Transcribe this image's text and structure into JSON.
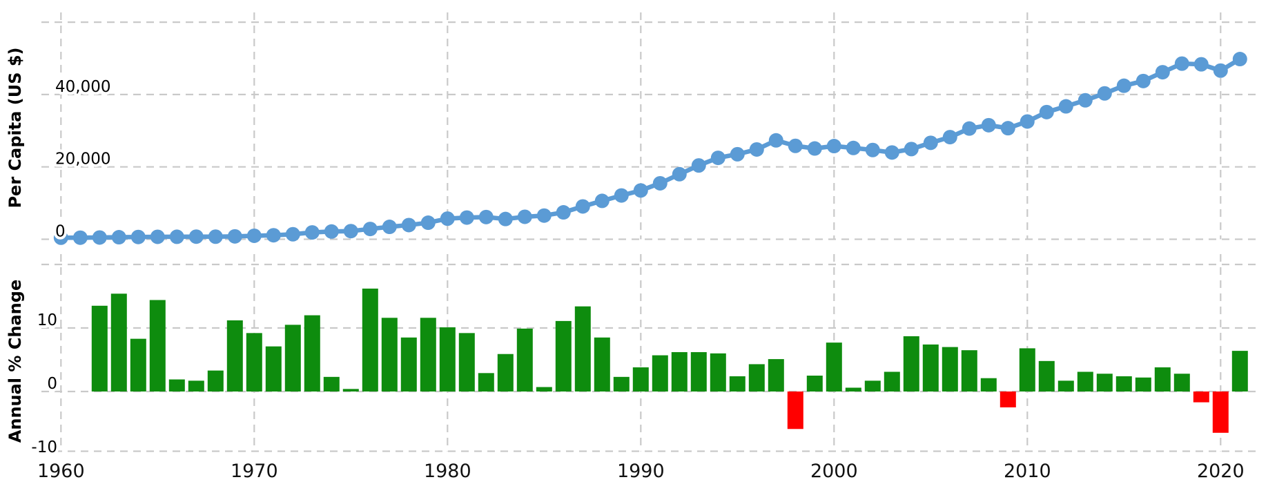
{
  "colors": {
    "line": "#5b9bd5",
    "marker": "#5b9bd5",
    "bar_positive": "#0e8c0e",
    "bar_negative": "#ff0000",
    "gridline": "#c9c9c9",
    "tick_text": "#111111",
    "background": "#ffffff"
  },
  "x_axis": {
    "tick_labels": [
      "1960",
      "1970",
      "1980",
      "1990",
      "2000",
      "2010",
      "2020"
    ],
    "tick_years": [
      1960,
      1970,
      1980,
      1990,
      2000,
      2010,
      2020
    ]
  },
  "chart_data": [
    {
      "type": "line",
      "name": "per-capita-line-chart",
      "ylabel": "Per Capita (US $)",
      "legend_position": "none",
      "grid": true,
      "grid_style": "dashed",
      "ytick_values": [
        0,
        20000,
        40000
      ],
      "ytick_labels": [
        "0",
        "20,000",
        "40,000"
      ],
      "ygrid_values": [
        0,
        20000,
        40000,
        60000
      ],
      "ylim": [
        0,
        62700
      ],
      "xlim": [
        1959,
        2021.9
      ],
      "x": [
        1960,
        1961,
        1962,
        1963,
        1964,
        1965,
        1966,
        1967,
        1968,
        1969,
        1970,
        1971,
        1972,
        1973,
        1974,
        1975,
        1976,
        1977,
        1978,
        1979,
        1980,
        1981,
        1982,
        1983,
        1984,
        1985,
        1986,
        1987,
        1988,
        1989,
        1990,
        1991,
        1992,
        1993,
        1994,
        1995,
        1996,
        1997,
        1998,
        1999,
        2000,
        2001,
        2002,
        2003,
        2004,
        2005,
        2006,
        2007,
        2008,
        2009,
        2010,
        2011,
        2012,
        2013,
        2014,
        2015,
        2016,
        2017,
        2018,
        2019,
        2020,
        2021
      ],
      "values": [
        429,
        437,
        488,
        565,
        630,
        677,
        686,
        723,
        714,
        791,
        959,
        1106,
        1384,
        1893,
        2144,
        2252,
        2850,
        3429,
        3924,
        4569,
        5700,
        5991,
        6134,
        5595,
        6208,
        6543,
        7435,
        9071,
        10609,
        12098,
        13486,
        15466,
        17976,
        20396,
        22503,
        23497,
        24818,
        27330,
        25809,
        25092,
        25757,
        25230,
        24666,
        23977,
        24928,
        26650,
        28224,
        30594,
        31516,
        30697,
        32550,
        35142,
        36731,
        38404,
        40315,
        42432,
        43731,
        46166,
        48543,
        48356,
        46611,
        49800
      ]
    },
    {
      "type": "bar",
      "name": "annual-percent-change-bar-chart",
      "ylabel": "Annual % Change",
      "legend_position": "none",
      "grid": true,
      "grid_style": "dashed",
      "ytick_values": [
        -10,
        0,
        10
      ],
      "ytick_labels": [
        "-10",
        "0",
        "10"
      ],
      "ygrid_values": [
        0,
        10,
        20
      ],
      "ylim": [
        -9.4,
        21.6
      ],
      "xlim": [
        1959,
        2021.9
      ],
      "x": [
        1962,
        1963,
        1964,
        1965,
        1966,
        1967,
        1968,
        1969,
        1970,
        1971,
        1972,
        1973,
        1974,
        1975,
        1976,
        1977,
        1978,
        1979,
        1980,
        1981,
        1982,
        1983,
        1984,
        1985,
        1986,
        1987,
        1988,
        1989,
        1990,
        1991,
        1992,
        1993,
        1994,
        1995,
        1996,
        1997,
        1998,
        1999,
        2000,
        2001,
        2002,
        2003,
        2004,
        2005,
        2006,
        2007,
        2008,
        2009,
        2010,
        2011,
        2012,
        2013,
        2014,
        2015,
        2016,
        2017,
        2018,
        2019,
        2020,
        2021
      ],
      "values": [
        13.5,
        15.4,
        8.3,
        14.4,
        1.9,
        1.7,
        3.3,
        11.2,
        9.2,
        7.1,
        10.5,
        12.0,
        2.3,
        0.4,
        16.2,
        11.6,
        8.5,
        11.6,
        10.1,
        9.2,
        2.9,
        5.9,
        9.9,
        0.7,
        11.1,
        13.4,
        8.5,
        2.3,
        3.8,
        5.7,
        6.2,
        6.2,
        6.0,
        2.4,
        4.3,
        5.1,
        -5.9,
        2.5,
        7.7,
        0.6,
        1.7,
        3.1,
        8.7,
        7.4,
        7.0,
        6.5,
        2.1,
        -2.5,
        6.8,
        4.8,
        1.7,
        3.1,
        2.8,
        2.4,
        2.2,
        3.8,
        2.8,
        -1.7,
        -6.5,
        6.4
      ]
    }
  ]
}
